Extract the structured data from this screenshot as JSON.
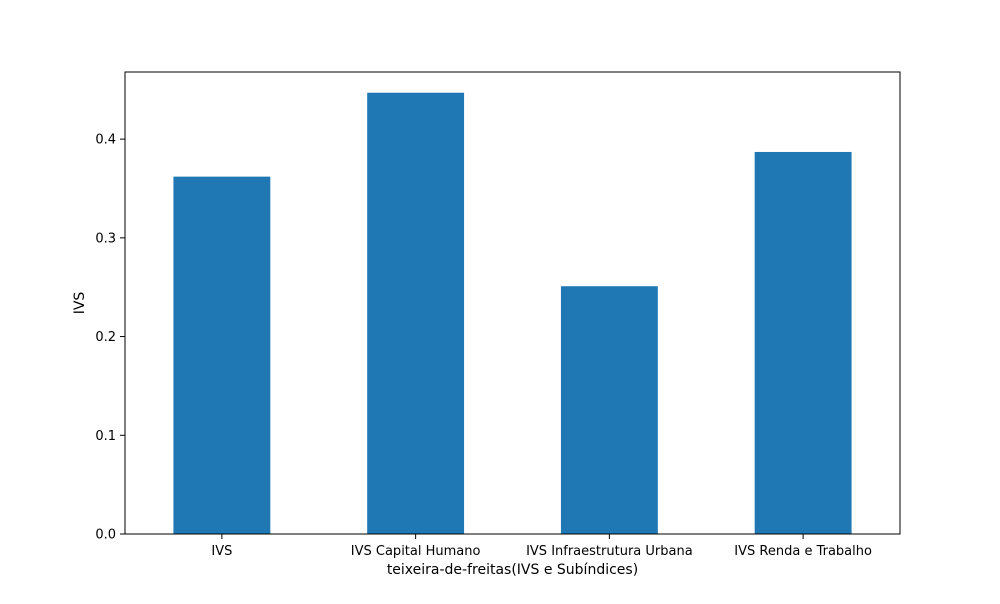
{
  "chart_data": {
    "type": "bar",
    "categories": [
      "IVS",
      "IVS Capital Humano",
      "IVS Infraestrutura Urbana",
      "IVS Renda e Trabalho"
    ],
    "values": [
      0.362,
      0.447,
      0.251,
      0.387
    ],
    "title": "",
    "xlabel": "teixeira-de-freitas(IVS e Subíndices)",
    "ylabel": "IVS",
    "ylim": [
      0,
      0.468
    ],
    "yticks": [
      0.0,
      0.1,
      0.2,
      0.3,
      0.4
    ],
    "ytick_labels": [
      "0.0",
      "0.1",
      "0.2",
      "0.3",
      "0.4"
    ],
    "grid": false,
    "bar_color": "#1f77b4"
  }
}
